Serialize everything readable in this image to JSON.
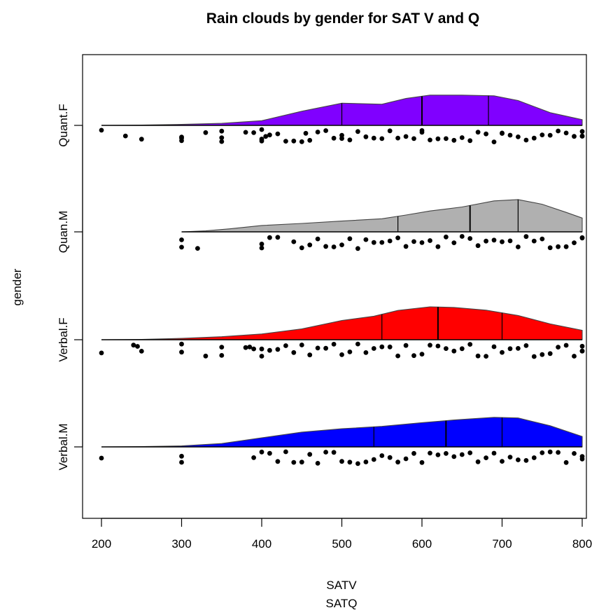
{
  "chart_data": {
    "type": "raincloud",
    "title": "Rain clouds by gender for SAT V and Q",
    "xlabel": [
      "SATV",
      "SATQ"
    ],
    "ylabel": "gender",
    "xlim": [
      190,
      810
    ],
    "x_ticks": [
      200,
      300,
      400,
      500,
      600,
      700,
      800
    ],
    "grid": false,
    "series": [
      {
        "name": "Quant.F",
        "color": "#8000FF",
        "quartiles": [
          500,
          600,
          683
        ],
        "density": [
          [
            200,
            0
          ],
          [
            250,
            0.01
          ],
          [
            300,
            0.03
          ],
          [
            350,
            0.06
          ],
          [
            400,
            0.14
          ],
          [
            450,
            0.42
          ],
          [
            500,
            0.66
          ],
          [
            550,
            0.63
          ],
          [
            580,
            0.8
          ],
          [
            610,
            0.9
          ],
          [
            650,
            0.9
          ],
          [
            690,
            0.88
          ],
          [
            720,
            0.74
          ],
          [
            760,
            0.38
          ],
          [
            800,
            0.17
          ]
        ],
        "points": [
          200,
          230,
          250,
          300,
          300,
          300,
          330,
          350,
          350,
          350,
          380,
          390,
          400,
          400,
          400,
          405,
          410,
          420,
          430,
          440,
          450,
          455,
          460,
          470,
          480,
          490,
          500,
          500,
          510,
          520,
          530,
          540,
          550,
          560,
          570,
          580,
          590,
          600,
          600,
          610,
          620,
          630,
          640,
          650,
          660,
          670,
          680,
          690,
          700,
          700,
          710,
          720,
          730,
          740,
          750,
          760,
          770,
          780,
          790,
          800,
          800,
          800
        ]
      },
      {
        "name": "Quan.M",
        "color": "#B0B0B0",
        "quartiles": [
          570,
          660,
          720
        ],
        "density": [
          [
            300,
            0
          ],
          [
            330,
            0.03
          ],
          [
            360,
            0.09
          ],
          [
            400,
            0.19
          ],
          [
            450,
            0.25
          ],
          [
            500,
            0.32
          ],
          [
            550,
            0.39
          ],
          [
            580,
            0.5
          ],
          [
            610,
            0.62
          ],
          [
            650,
            0.74
          ],
          [
            690,
            0.92
          ],
          [
            720,
            0.96
          ],
          [
            750,
            0.82
          ],
          [
            780,
            0.58
          ],
          [
            800,
            0.41
          ]
        ],
        "points": [
          300,
          300,
          320,
          400,
          400,
          410,
          420,
          440,
          450,
          460,
          470,
          480,
          490,
          500,
          510,
          520,
          530,
          540,
          550,
          560,
          570,
          580,
          590,
          600,
          610,
          620,
          630,
          640,
          650,
          660,
          670,
          680,
          690,
          700,
          710,
          720,
          730,
          740,
          750,
          760,
          770,
          780,
          790,
          800,
          800
        ]
      },
      {
        "name": "Verbal.F",
        "color": "#FF0000",
        "quartiles": [
          550,
          620,
          700
        ],
        "density": [
          [
            200,
            0
          ],
          [
            250,
            0.01
          ],
          [
            300,
            0.04
          ],
          [
            350,
            0.09
          ],
          [
            400,
            0.17
          ],
          [
            450,
            0.32
          ],
          [
            500,
            0.57
          ],
          [
            540,
            0.7
          ],
          [
            570,
            0.87
          ],
          [
            610,
            0.98
          ],
          [
            640,
            0.96
          ],
          [
            680,
            0.88
          ],
          [
            720,
            0.72
          ],
          [
            760,
            0.47
          ],
          [
            800,
            0.28
          ]
        ],
        "points": [
          200,
          240,
          245,
          250,
          300,
          300,
          330,
          350,
          350,
          380,
          385,
          390,
          400,
          400,
          410,
          420,
          430,
          440,
          450,
          460,
          470,
          480,
          490,
          500,
          510,
          520,
          530,
          540,
          550,
          560,
          570,
          580,
          590,
          600,
          610,
          620,
          630,
          640,
          650,
          660,
          670,
          680,
          690,
          700,
          710,
          720,
          730,
          740,
          750,
          760,
          770,
          780,
          790,
          800,
          800,
          800
        ]
      },
      {
        "name": "Verbal.M",
        "color": "#0000FF",
        "quartiles": [
          540,
          630,
          700
        ],
        "density": [
          [
            200,
            0
          ],
          [
            250,
            0.01
          ],
          [
            300,
            0.03
          ],
          [
            350,
            0.1
          ],
          [
            400,
            0.27
          ],
          [
            450,
            0.44
          ],
          [
            500,
            0.54
          ],
          [
            550,
            0.61
          ],
          [
            600,
            0.72
          ],
          [
            640,
            0.8
          ],
          [
            690,
            0.88
          ],
          [
            720,
            0.86
          ],
          [
            760,
            0.63
          ],
          [
            800,
            0.31
          ]
        ],
        "points": [
          200,
          300,
          300,
          390,
          400,
          410,
          420,
          430,
          440,
          450,
          460,
          470,
          480,
          490,
          500,
          510,
          520,
          530,
          540,
          550,
          560,
          570,
          580,
          590,
          600,
          610,
          620,
          630,
          640,
          650,
          660,
          670,
          680,
          690,
          700,
          710,
          720,
          730,
          740,
          750,
          760,
          770,
          780,
          790,
          800,
          800
        ]
      }
    ]
  }
}
